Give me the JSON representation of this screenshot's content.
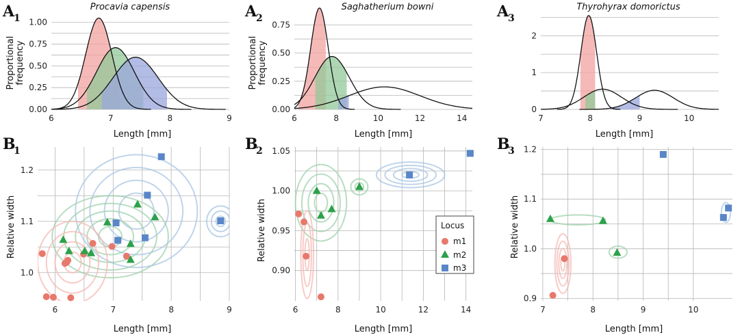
{
  "colors": {
    "m1": "#e8786c",
    "m2": "#2ca14a",
    "m3": "#5a86c8",
    "fill_m1": "#f2a3a0",
    "fill_m2": "#93c89a",
    "fill_m3": "#9aa6dc",
    "contour_m1": "#f4b9b4",
    "contour_m2": "#9fd1ac",
    "contour_m3": "#a9c6e4",
    "grid": "#b5b5b5"
  },
  "legend": {
    "title": "Locus",
    "items": [
      "m1",
      "m2",
      "m3"
    ]
  },
  "chart_data": [
    {
      "panel": "A1",
      "type": "area",
      "title": "Procavia capensis",
      "xlabel": "Length [mm]",
      "ylabel": "Proportional frequency",
      "xlim": [
        6,
        9
      ],
      "ylim": [
        0,
        1.1
      ],
      "xticks": [
        6,
        7,
        8,
        9
      ],
      "yticks": [
        0,
        0.25,
        0.5,
        0.75,
        1.0
      ],
      "ytick_labels": [
        "0.00",
        "0.25",
        "0.50",
        "0.75",
        "1.00"
      ],
      "series": [
        {
          "name": "m1",
          "mean": 6.8,
          "peak": 1.05,
          "sd": 0.22,
          "shaded_range": [
            6.45,
            7.15
          ]
        },
        {
          "name": "m2",
          "mean": 7.08,
          "peak": 0.71,
          "sd": 0.32,
          "shaded_range": [
            6.6,
            7.55
          ]
        },
        {
          "name": "m3",
          "mean": 7.42,
          "peak": 0.6,
          "sd": 0.38,
          "shaded_range": [
            6.85,
            7.95
          ]
        }
      ]
    },
    {
      "panel": "A2",
      "type": "area",
      "title": "Saghatherium bowni",
      "xlabel": "Length [mm]",
      "ylabel": "Proportional frequency",
      "xlim": [
        6,
        14.5
      ],
      "ylim": [
        0,
        0.85
      ],
      "xticks": [
        6,
        8,
        10,
        12,
        14
      ],
      "yticks": [
        0,
        0.25,
        0.5,
        0.75
      ],
      "ytick_labels": [
        "0.00",
        "0.25",
        "0.50",
        "0.75"
      ],
      "series": [
        {
          "name": "m1",
          "mean": 7.2,
          "peak": 0.9,
          "sd": 0.42,
          "shaded_range": [
            6.2,
            7.5
          ]
        },
        {
          "name": "m2",
          "mean": 7.8,
          "peak": 0.47,
          "sd": 0.82,
          "shaded_range": [
            7.0,
            8.5
          ]
        },
        {
          "name": "m3",
          "mean": 10.3,
          "peak": 0.2,
          "sd": 1.7,
          "shaded_range": [
            8.1,
            8.6
          ]
        }
      ]
    },
    {
      "panel": "A3",
      "type": "area",
      "title": "Thyrohyrax domorictus",
      "xlabel": "Length [mm]",
      "ylabel": "Proportional frequency",
      "xlim": [
        7,
        10.6
      ],
      "ylim": [
        0,
        2.6
      ],
      "xticks": [
        7,
        8,
        9,
        10
      ],
      "yticks": [
        0,
        1,
        2
      ],
      "ytick_labels": [
        "0",
        "1",
        "2"
      ],
      "series": [
        {
          "name": "m1",
          "mean": 7.97,
          "peak": 2.55,
          "sd": 0.16,
          "shaded_range": [
            7.8,
            8.1
          ]
        },
        {
          "name": "m2",
          "mean": 8.25,
          "peak": 0.55,
          "sd": 0.38,
          "shaded_range": [
            7.9,
            8.1
          ]
        },
        {
          "name": "m3",
          "mean": 9.3,
          "peak": 0.52,
          "sd": 0.38,
          "shaded_range": [
            8.4,
            9.0
          ]
        }
      ]
    },
    {
      "panel": "B1",
      "type": "scatter",
      "xlabel": "Length [mm]",
      "ylabel": "Relative width",
      "xlim": [
        5.7,
        9.0
      ],
      "ylim": [
        0.945,
        1.245
      ],
      "xticks": [
        6,
        7,
        8,
        9
      ],
      "yticks": [
        1.0,
        1.1,
        1.2
      ],
      "ytick_labels": [
        "1.0",
        "1.1",
        "1.2"
      ],
      "series": [
        {
          "name": "m1",
          "points": [
            [
              5.78,
              1.037
            ],
            [
              5.85,
              0.953
            ],
            [
              5.97,
              0.952
            ],
            [
              6.17,
              1.018
            ],
            [
              6.2,
              1.02
            ],
            [
              6.22,
              1.024
            ],
            [
              6.27,
              0.951
            ],
            [
              6.49,
              1.036
            ],
            [
              6.65,
              1.057
            ],
            [
              6.98,
              1.051
            ],
            [
              7.23,
              1.032
            ]
          ]
        },
        {
          "name": "m2",
          "points": [
            [
              6.14,
              1.064
            ],
            [
              6.24,
              1.042
            ],
            [
              6.51,
              1.042
            ],
            [
              6.62,
              1.038
            ],
            [
              6.9,
              1.098
            ],
            [
              7.3,
              1.056
            ],
            [
              7.3,
              1.025
            ],
            [
              7.42,
              1.133
            ],
            [
              7.72,
              1.108
            ]
          ]
        },
        {
          "name": "m3",
          "points": [
            [
              7.05,
              1.097
            ],
            [
              7.08,
              1.063
            ],
            [
              7.55,
              1.068
            ],
            [
              7.59,
              1.151
            ],
            [
              7.83,
              1.226
            ],
            [
              8.85,
              1.101
            ]
          ]
        }
      ]
    },
    {
      "panel": "B2",
      "type": "scatter",
      "xlabel": "Length [mm]",
      "ylabel": "Relative width",
      "xlim": [
        5.95,
        14.3
      ],
      "ylim": [
        0.862,
        1.055
      ],
      "xticks": [
        6,
        8,
        10,
        12,
        14
      ],
      "yticks": [
        0.9,
        0.95,
        1.0,
        1.05
      ],
      "ytick_labels": [
        "0.90",
        "0.95",
        "1.00",
        "1.05"
      ],
      "series": [
        {
          "name": "m1",
          "points": [
            [
              6.15,
              0.971
            ],
            [
              6.4,
              0.961
            ],
            [
              6.5,
              0.918
            ],
            [
              7.2,
              0.867
            ]
          ]
        },
        {
          "name": "m2",
          "points": [
            [
              7.0,
              1.0
            ],
            [
              7.2,
              0.969
            ],
            [
              7.7,
              0.977
            ],
            [
              9.0,
              1.005
            ]
          ]
        },
        {
          "name": "m3",
          "points": [
            [
              11.35,
              1.02
            ],
            [
              14.2,
              1.047
            ]
          ]
        }
      ]
    },
    {
      "panel": "B3",
      "type": "scatter",
      "xlabel": "Length [mm]",
      "ylabel": "Relative width",
      "xlim": [
        6.96,
        10.78
      ],
      "ylim": [
        0.895,
        1.205
      ],
      "xticks": [
        7,
        8,
        9,
        10
      ],
      "yticks": [
        0.9,
        1.0,
        1.1,
        1.2
      ],
      "ytick_labels": [
        "0.9",
        "1.0",
        "1.1",
        "1.2"
      ],
      "series": [
        {
          "name": "m1",
          "points": [
            [
              7.2,
              0.906
            ],
            [
              7.43,
              0.98
            ]
          ]
        },
        {
          "name": "m2",
          "points": [
            [
              7.15,
              1.06
            ],
            [
              8.2,
              1.056
            ],
            [
              8.48,
              0.992
            ]
          ]
        },
        {
          "name": "m3",
          "points": [
            [
              9.4,
              1.19
            ],
            [
              10.6,
              1.063
            ],
            [
              10.7,
              1.082
            ]
          ]
        }
      ]
    }
  ],
  "panel_labels": {
    "A1": {
      "letter": "A",
      "index": "1"
    },
    "A2": {
      "letter": "A",
      "index": "2"
    },
    "A3": {
      "letter": "A",
      "index": "3"
    },
    "B1": {
      "letter": "B",
      "index": "1"
    },
    "B2": {
      "letter": "B",
      "index": "2"
    },
    "B3": {
      "letter": "B",
      "index": "3"
    }
  }
}
